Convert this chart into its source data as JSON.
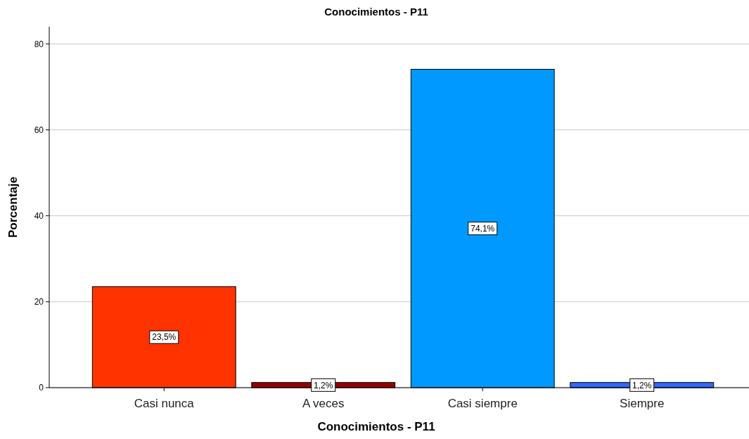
{
  "chart_data": {
    "type": "bar",
    "title": "Conocimientos - P11",
    "xlabel": "Conocimientos - P11",
    "ylabel": "Porcentaje",
    "categories": [
      "Casi nunca",
      "A veces",
      "Casi siempre",
      "Siempre"
    ],
    "values": [
      23.5,
      1.2,
      74.1,
      1.2
    ],
    "colors": [
      "#ff3300",
      "#990000",
      "#0099ff",
      "#3366ff"
    ],
    "value_labels": [
      "23,5%",
      "1,2%",
      "74,1%",
      "1,2%"
    ],
    "ylim": [
      0,
      84
    ],
    "yticks": [
      0,
      20,
      40,
      60,
      80
    ],
    "grid": "y"
  }
}
